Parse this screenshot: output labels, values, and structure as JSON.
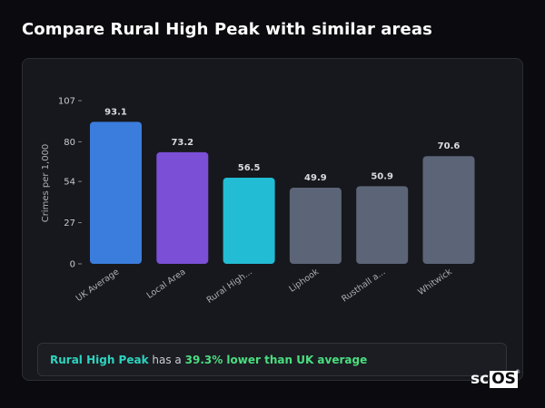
{
  "page": {
    "title": "Compare Rural High Peak with similar areas"
  },
  "summary": {
    "area_name": "Rural High Peak",
    "middle_text": "has a",
    "stat_text": "39.3% lower than UK average"
  },
  "logo": {
    "text_prefix": "sc",
    "text_box": "OS",
    "registered_mark": "®"
  },
  "colors": {
    "uk_average": "#3b7ddd",
    "local_area": "#7b4fd6",
    "focus_area": "#22bcd4",
    "comparison": "#5b6577",
    "summary_area": "#2dd4bf",
    "summary_stat": "#4ade80"
  },
  "chart_data": {
    "type": "bar",
    "ylabel": "Crimes per 1,000",
    "xlabel": "",
    "ylim": [
      0,
      107
    ],
    "yticks": [
      0,
      27,
      54,
      80,
      107
    ],
    "grid": false,
    "categories": [
      "UK Average",
      "Local Area",
      "Rural High...",
      "Liphook",
      "Rusthall a...",
      "Whitwick"
    ],
    "values": [
      93.1,
      73.2,
      56.5,
      49.9,
      50.9,
      70.6
    ],
    "value_labels": [
      "93.1",
      "73.2",
      "56.5",
      "49.9",
      "50.9",
      "70.6"
    ],
    "bar_colors": [
      "#3b7ddd",
      "#7b4fd6",
      "#22bcd4",
      "#5b6577",
      "#5b6577",
      "#5b6577"
    ]
  }
}
